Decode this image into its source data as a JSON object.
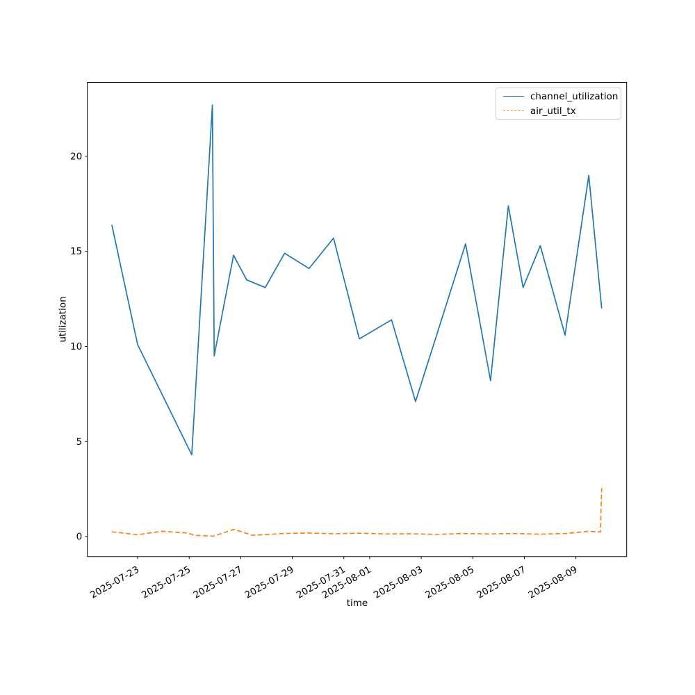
{
  "figure": {
    "background": "#ffffff"
  },
  "axes": {
    "xlabel": "time",
    "ylabel": "utilization"
  },
  "legend": {
    "position": "upper right",
    "items": [
      {
        "label": "channel_utilization",
        "color": "#1f77b4",
        "line_style": "solid"
      },
      {
        "label": "air_util_tx",
        "color": "#ff7f0e",
        "line_style": "dashed"
      }
    ]
  },
  "chart_data": {
    "type": "line",
    "title": "",
    "xlabel": "time",
    "ylabel": "utilization",
    "grid": false,
    "legend_position": "upper right",
    "x_unit": "days since 2025-07-22 00:00",
    "xlim": [
      -0.95,
      19.97
    ],
    "ylim": [
      -1.05,
      23.89
    ],
    "y_ticks": [
      0,
      5,
      10,
      15,
      20
    ],
    "x_ticks": [
      {
        "x": 1,
        "label": "2025-07-23"
      },
      {
        "x": 3,
        "label": "2025-07-25"
      },
      {
        "x": 5,
        "label": "2025-07-27"
      },
      {
        "x": 7,
        "label": "2025-07-29"
      },
      {
        "x": 9,
        "label": "2025-07-31"
      },
      {
        "x": 10,
        "label": "2025-08-01"
      },
      {
        "x": 12,
        "label": "2025-08-03"
      },
      {
        "x": 14,
        "label": "2025-08-05"
      },
      {
        "x": 16,
        "label": "2025-08-07"
      },
      {
        "x": 18,
        "label": "2025-08-09"
      }
    ],
    "series": [
      {
        "name": "channel_utilization",
        "color": "#1f77b4",
        "line_style": "solid",
        "points": [
          [
            0.0,
            16.4
          ],
          [
            1.0,
            10.1
          ],
          [
            3.1,
            4.3
          ],
          [
            3.9,
            22.7
          ],
          [
            3.97,
            9.5
          ],
          [
            4.72,
            14.8
          ],
          [
            5.23,
            13.5
          ],
          [
            5.95,
            13.1
          ],
          [
            6.7,
            14.9
          ],
          [
            7.65,
            14.1
          ],
          [
            8.6,
            15.7
          ],
          [
            9.6,
            10.4
          ],
          [
            10.85,
            11.4
          ],
          [
            11.78,
            7.1
          ],
          [
            13.72,
            15.4
          ],
          [
            14.69,
            8.2
          ],
          [
            15.38,
            17.4
          ],
          [
            15.95,
            13.1
          ],
          [
            16.62,
            15.3
          ],
          [
            17.58,
            10.6
          ],
          [
            18.5,
            19.0
          ],
          [
            19.0,
            12.0
          ]
        ]
      },
      {
        "name": "air_util_tx",
        "color": "#ff7f0e",
        "line_style": "dashed",
        "points": [
          [
            0.0,
            0.25
          ],
          [
            1.0,
            0.1
          ],
          [
            1.95,
            0.28
          ],
          [
            2.95,
            0.19
          ],
          [
            3.2,
            0.07
          ],
          [
            3.93,
            0.02
          ],
          [
            4.74,
            0.38
          ],
          [
            5.45,
            0.07
          ],
          [
            6.6,
            0.16
          ],
          [
            7.6,
            0.19
          ],
          [
            8.6,
            0.15
          ],
          [
            9.6,
            0.18
          ],
          [
            10.6,
            0.14
          ],
          [
            11.6,
            0.15
          ],
          [
            12.6,
            0.12
          ],
          [
            13.6,
            0.16
          ],
          [
            14.6,
            0.14
          ],
          [
            15.6,
            0.16
          ],
          [
            16.6,
            0.13
          ],
          [
            17.6,
            0.16
          ],
          [
            18.5,
            0.28
          ],
          [
            18.95,
            0.24
          ],
          [
            19.0,
            2.55
          ]
        ]
      }
    ]
  }
}
